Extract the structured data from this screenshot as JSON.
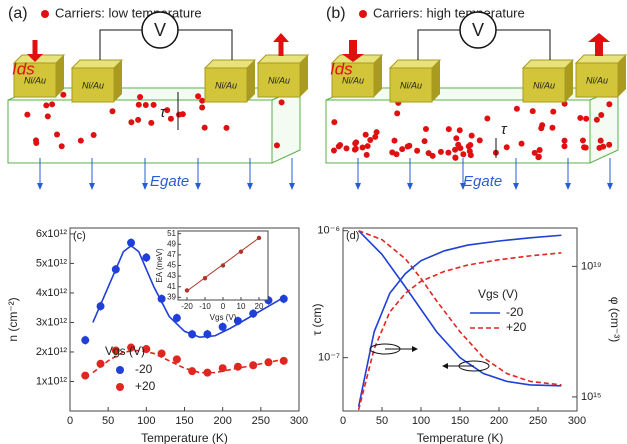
{
  "diagrams": [
    {
      "panel": "(a)",
      "legend": "Carriers: low temperature",
      "current": "Ids",
      "voltmeter": "V",
      "contacts": [
        "Ni/Au",
        "Ni/Au",
        "Ni/Au",
        "Ni/Au"
      ],
      "thickness": "τ",
      "field": "Egate"
    },
    {
      "panel": "(b)",
      "legend": "Carriers: high temperature",
      "current": "Ids",
      "voltmeter": "V",
      "contacts": [
        "Ni/Au",
        "Ni/Au",
        "Ni/Au",
        "Ni/Au"
      ],
      "thickness": "τ",
      "field": "Egate"
    }
  ],
  "chart_data": [
    {
      "type": "scatter",
      "panel": "(c)",
      "x_label": "Temperature (K)",
      "y_label": "n (cm⁻²)",
      "xlim": [
        0,
        300
      ],
      "xticks": [
        0,
        50,
        100,
        150,
        200,
        250,
        300
      ],
      "ylim": [
        0,
        6200000000000.0
      ],
      "yticks": [
        {
          "value": 1000000000000.0,
          "label": "1x10¹²"
        },
        {
          "value": 2000000000000.0,
          "label": "2x10¹²"
        },
        {
          "value": 3000000000000.0,
          "label": "3x10¹²"
        },
        {
          "value": 4000000000000.0,
          "label": "4x10¹²"
        },
        {
          "value": 5000000000000.0,
          "label": "5x10¹²"
        },
        {
          "value": 6000000000000.0,
          "label": "6x10¹²"
        }
      ],
      "legend_title": "Vgs (V)",
      "series": [
        {
          "name": "-20",
          "color": "#1f3fd8",
          "x": [
            20,
            40,
            60,
            80,
            100,
            120,
            140,
            160,
            180,
            200,
            220,
            240,
            260,
            280
          ],
          "values": [
            2400000000000.0,
            3550000000000.0,
            4800000000000.0,
            5700000000000.0,
            5200000000000.0,
            3800000000000.0,
            3150000000000.0,
            2600000000000.0,
            2600000000000.0,
            2850000000000.0,
            3050000000000.0,
            3300000000000.0,
            3750000000000.0,
            3800000000000.0
          ],
          "errors": [
            150000000000.0,
            150000000000.0,
            150000000000.0,
            150000000000.0,
            150000000000.0,
            150000000000.0,
            150000000000.0,
            150000000000.0,
            150000000000.0,
            150000000000.0,
            150000000000.0,
            150000000000.0,
            150000000000.0,
            150000000000.0
          ]
        },
        {
          "name": "+20",
          "color": "#e0261f",
          "x": [
            20,
            40,
            60,
            80,
            100,
            120,
            140,
            160,
            180,
            200,
            220,
            240,
            260,
            280
          ],
          "values": [
            1200000000000.0,
            1600000000000.0,
            2050000000000.0,
            2150000000000.0,
            2100000000000.0,
            1950000000000.0,
            1750000000000.0,
            1350000000000.0,
            1300000000000.0,
            1450000000000.0,
            1500000000000.0,
            1550000000000.0,
            1650000000000.0,
            1700000000000.0
          ],
          "errors": [
            120000000000.0,
            120000000000.0,
            120000000000.0,
            120000000000.0,
            120000000000.0,
            120000000000.0,
            120000000000.0,
            120000000000.0,
            120000000000.0,
            120000000000.0,
            120000000000.0,
            120000000000.0,
            120000000000.0,
            120000000000.0
          ]
        }
      ],
      "fits": [
        {
          "color": "#1f3fd8",
          "dashed": false,
          "x": [
            30,
            50,
            70,
            80,
            90,
            110,
            130,
            150,
            170,
            190,
            210,
            230,
            250,
            270,
            280
          ],
          "values": [
            3000000000000.0,
            4200000000000.0,
            5400000000000.0,
            5600000000000.0,
            5400000000000.0,
            4200000000000.0,
            3200000000000.0,
            2700000000000.0,
            2500000000000.0,
            2550000000000.0,
            2800000000000.0,
            3100000000000.0,
            3400000000000.0,
            3700000000000.0,
            3850000000000.0
          ]
        },
        {
          "color": "#e0261f",
          "dashed": true,
          "x": [
            30,
            50,
            70,
            90,
            110,
            130,
            150,
            170,
            190,
            210,
            230,
            250,
            270,
            280
          ],
          "values": [
            1300000000000.0,
            1700000000000.0,
            2000000000000.0,
            2050000000000.0,
            1950000000000.0,
            1700000000000.0,
            1450000000000.0,
            1300000000000.0,
            1300000000000.0,
            1400000000000.0,
            1500000000000.0,
            1600000000000.0,
            1700000000000.0,
            1750000000000.0
          ]
        }
      ],
      "inset": {
        "x_label": "Vgs (V)",
        "y_label": "EA (meV)",
        "xlim": [
          -25,
          25
        ],
        "xticks": [
          -20,
          -10,
          0,
          10,
          20
        ],
        "ylim": [
          38.5,
          51.5
        ],
        "yticks": [
          39,
          41,
          43,
          45,
          47,
          49,
          51
        ],
        "x": [
          -20,
          -10,
          0,
          10,
          20
        ],
        "values": [
          40.3,
          42.6,
          45.0,
          47.6,
          50.2
        ],
        "color": "#b0322a",
        "fit": {
          "x": [
            -20,
            20
          ],
          "values": [
            40.2,
            50.2
          ]
        }
      }
    },
    {
      "type": "line",
      "panel": "(d)",
      "x_label": "Temperature (K)",
      "y_label": "τ (cm)",
      "y2_label": "φ (cm⁻³)",
      "log_y": true,
      "xlim": [
        0,
        300
      ],
      "xticks": [
        0,
        50,
        100,
        150,
        200,
        250,
        300
      ],
      "ylim": [
        3.8e-08,
        1.05e-06
      ],
      "yticks": [
        {
          "value": 1e-07,
          "label": "10⁻⁷"
        },
        {
          "value": 1e-06,
          "label": "10⁻⁶"
        }
      ],
      "y2lim": [
        370000000000000.0,
        1.5e+20
      ],
      "y2ticks": [
        {
          "value": 1000000000000000.0,
          "label": "10¹⁵"
        },
        {
          "value": 1e+19,
          "label": "10¹⁹"
        }
      ],
      "legend_title": "Vgs (V)",
      "series": [
        {
          "name": "-20",
          "color": "#1f3fd8",
          "dashed": false,
          "x": [
            20,
            50,
            80,
            100,
            120,
            150,
            180,
            210,
            240,
            280
          ],
          "values": [
            1e-06,
            6.5e-07,
            3.6e-07,
            2.4e-07,
            1.6e-07,
            1e-07,
            7.5e-08,
            6.5e-08,
            6.1e-08,
            6e-08
          ]
        },
        {
          "name": "+20",
          "color": "#e0261f",
          "dashed": true,
          "x": [
            20,
            50,
            80,
            100,
            120,
            150,
            180,
            210,
            240,
            280
          ],
          "values": [
            1e-06,
            8.5e-07,
            6e-07,
            4.2e-07,
            2.8e-07,
            1.6e-07,
            1e-07,
            7.5e-08,
            6.5e-08,
            6.1e-08
          ]
        },
        {
          "color": "#1f3fd8",
          "dashed": false,
          "axis": "y2",
          "x": [
            20,
            40,
            60,
            80,
            100,
            130,
            160,
            200,
            240,
            280
          ],
          "values": [
            500000000000000.0,
            1e+17,
            1.5e+18,
            6e+18,
            1.5e+19,
            3e+19,
            4.5e+19,
            6e+19,
            7.5e+19,
            9e+19
          ]
        },
        {
          "color": "#e0261f",
          "dashed": true,
          "axis": "y2",
          "x": [
            20,
            40,
            60,
            80,
            100,
            130,
            160,
            200,
            240,
            280
          ],
          "values": [
            400000000000000.0,
            3e+16,
            4e+17,
            1.5e+18,
            3.5e+18,
            7e+18,
            1.1e+19,
            1.6e+19,
            2.1e+19,
            2.6e+19
          ]
        }
      ]
    }
  ]
}
